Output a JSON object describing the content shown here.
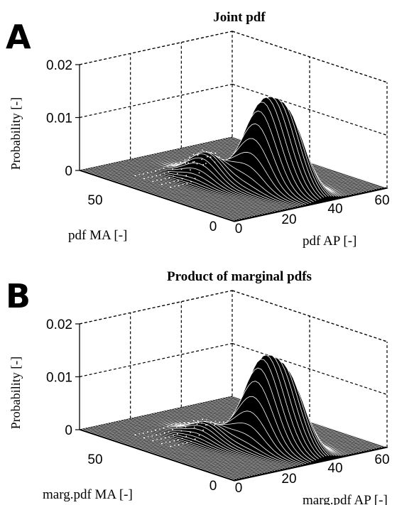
{
  "figure": {
    "panels": [
      {
        "letter": "A"
      },
      {
        "letter": "B"
      }
    ]
  },
  "chart_data": [
    {
      "type": "surface3d",
      "panel": "A",
      "title": "Joint pdf",
      "zlabel": "Probability [-]",
      "xlabel": "pdf AP [-]",
      "ylabel": "pdf MA [-]",
      "zlim": [
        0,
        0.02
      ],
      "zticks": [
        "0",
        "0.01",
        "0.02"
      ],
      "xticks": [
        "0",
        "20",
        "40",
        "60"
      ],
      "yticks": [
        "0",
        "50"
      ],
      "xlim": [
        0,
        60
      ],
      "ylim": [
        0,
        70
      ],
      "grid": true,
      "colors": {
        "surface": "#000000",
        "mesh": "#ffffff"
      },
      "peaks": [
        {
          "x": 32,
          "y": 25,
          "height": 0.0135
        },
        {
          "x": 37,
          "y": 18,
          "height": 0.0125
        },
        {
          "x": 24,
          "y": 40,
          "height": 0.005
        }
      ]
    },
    {
      "type": "surface3d",
      "panel": "B",
      "title": "Product of marginal pdfs",
      "zlabel": "Probability [-]",
      "xlabel": "marg.pdf AP [-]",
      "ylabel": "marg.pdf MA [-]",
      "zlim": [
        0,
        0.02
      ],
      "zticks": [
        "0",
        "0.01",
        "0.02"
      ],
      "xticks": [
        "0",
        "20",
        "40",
        "60"
      ],
      "yticks": [
        "0",
        "50"
      ],
      "xlim": [
        0,
        60
      ],
      "ylim": [
        0,
        70
      ],
      "grid": true,
      "colors": {
        "surface": "#000000",
        "mesh": "#ffffff"
      },
      "peaks": [
        {
          "x": 32,
          "y": 25,
          "height": 0.014
        },
        {
          "x": 37,
          "y": 18,
          "height": 0.012
        },
        {
          "x": 24,
          "y": 40,
          "height": 0.003
        }
      ]
    }
  ]
}
